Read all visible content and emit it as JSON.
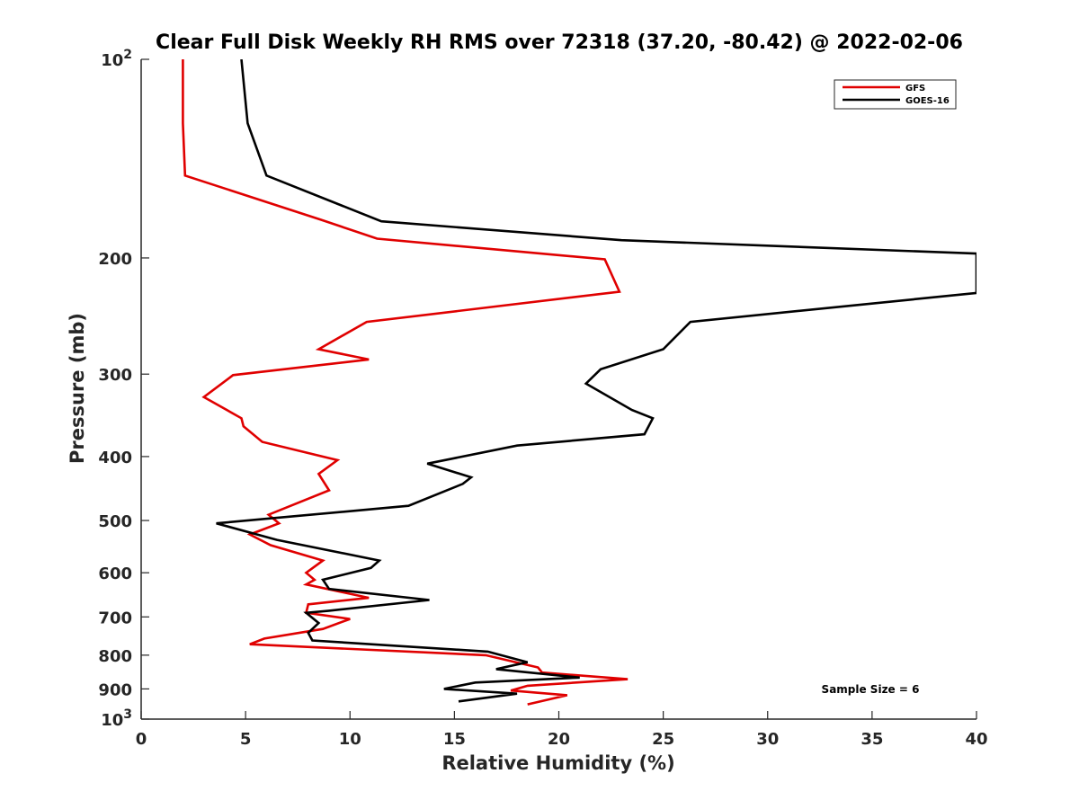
{
  "chart_data": {
    "type": "line",
    "title": "Clear Full Disk Weekly RH RMS over 72318 (37.20, -80.42) @ 2022-02-06",
    "xlabel": "Relative Humidity (%)",
    "ylabel": "Pressure (mb)",
    "xlim": [
      0,
      40
    ],
    "ylim": [
      100,
      1000
    ],
    "y_scale": "log",
    "y_reversed": true,
    "grid": false,
    "legend_position": "top-right",
    "annotation": "Sample Size = 6",
    "x_ticks": [
      0,
      5,
      10,
      15,
      20,
      25,
      30,
      35,
      40
    ],
    "x_tick_labels": [
      "0",
      "5",
      "10",
      "15",
      "20",
      "25",
      "30",
      "35",
      "40"
    ],
    "y_ticks": [
      {
        "value": 100,
        "base": "10",
        "exp": "2"
      },
      {
        "value": 200,
        "label": "200"
      },
      {
        "value": 300,
        "label": "300"
      },
      {
        "value": 400,
        "label": "400"
      },
      {
        "value": 500,
        "label": "500"
      },
      {
        "value": 600,
        "label": "600"
      },
      {
        "value": 700,
        "label": "700"
      },
      {
        "value": 800,
        "label": "800"
      },
      {
        "value": 900,
        "label": "900"
      },
      {
        "value": 1000,
        "base": "10",
        "exp": "3"
      }
    ],
    "series": [
      {
        "name": "GFS",
        "color": "#e00000",
        "points": [
          [
            2.0,
            100
          ],
          [
            2.0,
            125
          ],
          [
            2.1,
            150
          ],
          [
            8.6,
            175
          ],
          [
            11.3,
            187
          ],
          [
            22.2,
            201
          ],
          [
            22.9,
            225
          ],
          [
            10.8,
            250
          ],
          [
            8.5,
            275
          ],
          [
            10.9,
            285
          ],
          [
            4.4,
            301
          ],
          [
            3.0,
            325
          ],
          [
            4.8,
            350
          ],
          [
            4.9,
            360
          ],
          [
            5.8,
            380
          ],
          [
            9.4,
            405
          ],
          [
            8.5,
            425
          ],
          [
            9.0,
            450
          ],
          [
            6.1,
            490
          ],
          [
            6.6,
            505
          ],
          [
            5.2,
            525
          ],
          [
            6.2,
            545
          ],
          [
            8.7,
            575
          ],
          [
            7.9,
            600
          ],
          [
            8.3,
            615
          ],
          [
            7.9,
            625
          ],
          [
            10.9,
            655
          ],
          [
            8.0,
            670
          ],
          [
            7.9,
            690
          ],
          [
            10.0,
            705
          ],
          [
            8.7,
            730
          ],
          [
            5.9,
            755
          ],
          [
            5.2,
            770
          ],
          [
            16.5,
            800
          ],
          [
            19.0,
            835
          ],
          [
            19.2,
            850
          ],
          [
            23.3,
            870
          ],
          [
            18.5,
            890
          ],
          [
            17.7,
            905
          ],
          [
            20.4,
            920
          ],
          [
            18.5,
            950
          ]
        ]
      },
      {
        "name": "GOES-16",
        "color": "#000000",
        "points": [
          [
            4.8,
            100
          ],
          [
            5.1,
            125
          ],
          [
            6.0,
            150
          ],
          [
            11.5,
            176
          ],
          [
            23.0,
            188
          ],
          [
            40.0,
            197
          ],
          [
            40.0,
            226
          ],
          [
            26.3,
            250
          ],
          [
            25.0,
            275
          ],
          [
            22.0,
            295
          ],
          [
            21.3,
            310
          ],
          [
            23.5,
            340
          ],
          [
            24.5,
            350
          ],
          [
            24.1,
            370
          ],
          [
            18.0,
            385
          ],
          [
            13.7,
            410
          ],
          [
            15.8,
            430
          ],
          [
            15.4,
            440
          ],
          [
            12.8,
            475
          ],
          [
            3.6,
            505
          ],
          [
            6.5,
            535
          ],
          [
            11.4,
            575
          ],
          [
            11.0,
            590
          ],
          [
            8.7,
            615
          ],
          [
            9.0,
            635
          ],
          [
            13.8,
            660
          ],
          [
            9.0,
            685
          ],
          [
            7.9,
            690
          ],
          [
            8.5,
            715
          ],
          [
            8.0,
            740
          ],
          [
            8.2,
            760
          ],
          [
            16.6,
            790
          ],
          [
            18.5,
            820
          ],
          [
            17.0,
            840
          ],
          [
            21.0,
            865
          ],
          [
            16.0,
            880
          ],
          [
            14.5,
            900
          ],
          [
            18.0,
            915
          ],
          [
            15.2,
            940
          ]
        ]
      }
    ]
  }
}
